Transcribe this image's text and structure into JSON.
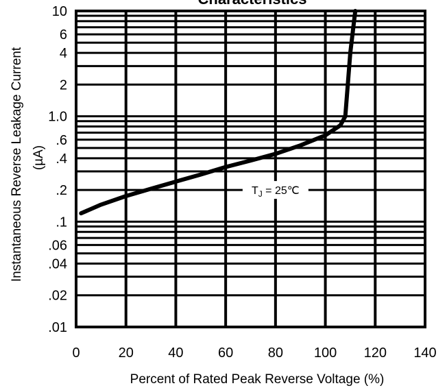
{
  "chart_data": {
    "type": "line",
    "title": "Characteristics",
    "xlabel": "Percent of Rated Peak Reverse Voltage (%)",
    "ylabel": "Instantaneous Reverse Leakage Current",
    "ylabel_unit": "(µA)",
    "x_scale": "linear",
    "y_scale": "log",
    "xlim": [
      0,
      140
    ],
    "ylim": [
      0.01,
      10
    ],
    "grid": true,
    "x_ticks": [
      0,
      20,
      40,
      60,
      80,
      100,
      120,
      140
    ],
    "x_tick_labels": [
      "0",
      "20",
      "40",
      "60",
      "80",
      "100",
      "120",
      "140"
    ],
    "y_ticks": [
      10,
      6,
      4,
      2,
      1.0,
      0.6,
      0.4,
      0.2,
      0.1,
      0.06,
      0.04,
      0.02,
      0.01
    ],
    "y_tick_labels": [
      "10",
      "6",
      "4",
      "2",
      "1.0",
      ".6",
      ".4",
      ".2",
      ".1",
      ".06",
      ".04",
      ".02",
      ".01"
    ],
    "annotation": {
      "text_main": "T",
      "text_sub": "J",
      "text_rest": " = 25℃",
      "x": 80,
      "y": 0.2
    },
    "series": [
      {
        "x": [
          2,
          10,
          20,
          30,
          40,
          50,
          60,
          70,
          80,
          90,
          100,
          106,
          108,
          110,
          112
        ],
        "y": [
          0.12,
          0.145,
          0.175,
          0.205,
          0.24,
          0.28,
          0.33,
          0.38,
          0.44,
          0.53,
          0.66,
          0.82,
          1.0,
          4.0,
          10
        ]
      }
    ]
  }
}
